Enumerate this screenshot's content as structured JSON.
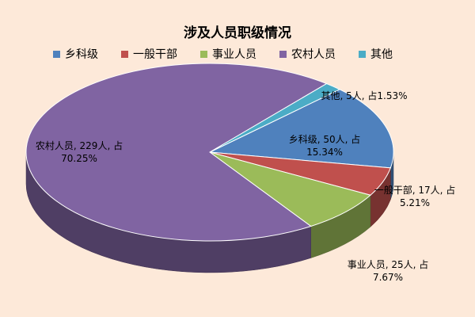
{
  "chart_data": {
    "type": "pie",
    "title": "涉及人员职级情况",
    "categories": [
      "乡科级",
      "一般干部",
      "事业人员",
      "农村人员",
      "其他"
    ],
    "values": [
      50,
      17,
      25,
      229,
      5
    ],
    "value_labels": [
      "乡科级, 50人, 占15.34%",
      "一般干部, 17人, 占5.21%",
      "事业人员, 25人, 占7.67%",
      "农村人员, 229人, 占70.25%",
      "其他, 5人, 占1.53%"
    ],
    "colors": [
      "#4f81bd",
      "#c0504d",
      "#9bbb59",
      "#8064a2",
      "#4bacc6"
    ],
    "legend": "top"
  }
}
